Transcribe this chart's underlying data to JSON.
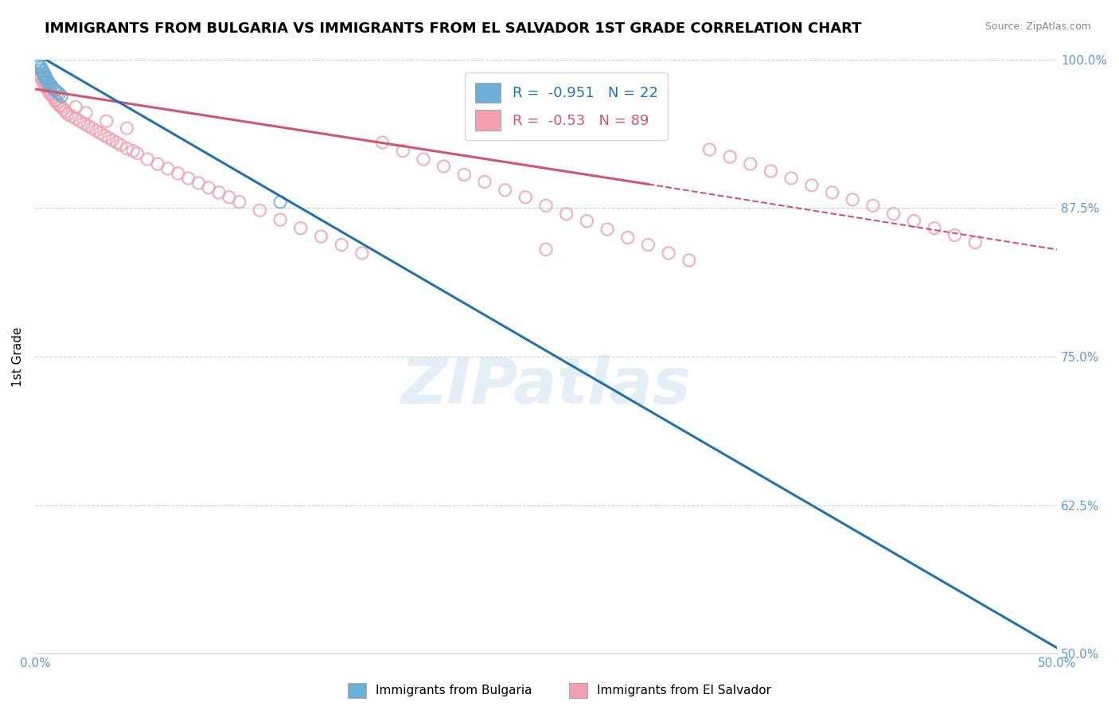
{
  "title": "IMMIGRANTS FROM BULGARIA VS IMMIGRANTS FROM EL SALVADOR 1ST GRADE CORRELATION CHART",
  "source": "Source: ZipAtlas.com",
  "ylabel": "1st Grade",
  "xlabel_legend1": "Immigrants from Bulgaria",
  "xlabel_legend2": "Immigrants from El Salvador",
  "xlim": [
    0.0,
    0.5
  ],
  "ylim": [
    0.5,
    1.0
  ],
  "xticks": [
    0.0,
    0.125,
    0.25,
    0.375,
    0.5
  ],
  "xtick_labels": [
    "0.0%",
    "",
    "",
    "",
    "50.0%"
  ],
  "yticks": [
    0.5,
    0.625,
    0.75,
    0.875,
    1.0
  ],
  "ytick_labels": [
    "50.0%",
    "62.5%",
    "75.0%",
    "87.5%",
    "100.0%"
  ],
  "r_bulgaria": -0.951,
  "n_bulgaria": 22,
  "r_salvador": -0.53,
  "n_salvador": 89,
  "color_bulgaria": "#6baed6",
  "color_salvador": "#f4a0b0",
  "line_color_bulgaria": "#2171b5",
  "line_color_salvador": "#d6536d",
  "watermark": "ZIPatlas",
  "bulg_line_x0": 0.0,
  "bulg_line_y0": 1.005,
  "bulg_line_x1": 0.5,
  "bulg_line_y1": 0.505,
  "salv_line_x0": 0.0,
  "salv_line_y0": 0.975,
  "salv_line_x1_solid": 0.3,
  "salv_line_y1_solid": 0.895,
  "salv_line_x1_dash": 0.5,
  "salv_line_y1_dash": 0.84,
  "bulgaria_x": [
    0.001,
    0.002,
    0.002,
    0.003,
    0.003,
    0.004,
    0.004,
    0.005,
    0.005,
    0.005,
    0.006,
    0.006,
    0.007,
    0.007,
    0.008,
    0.008,
    0.009,
    0.01,
    0.011,
    0.012,
    0.013,
    0.12
  ],
  "bulgaria_y": [
    0.998,
    0.996,
    0.994,
    0.993,
    0.991,
    0.99,
    0.988,
    0.987,
    0.985,
    0.984,
    0.983,
    0.981,
    0.98,
    0.979,
    0.978,
    0.977,
    0.975,
    0.974,
    0.972,
    0.971,
    0.969,
    0.88
  ],
  "salvador_x": [
    0.002,
    0.003,
    0.003,
    0.004,
    0.004,
    0.005,
    0.005,
    0.006,
    0.006,
    0.007,
    0.007,
    0.008,
    0.008,
    0.009,
    0.01,
    0.01,
    0.011,
    0.012,
    0.013,
    0.014,
    0.015,
    0.016,
    0.018,
    0.02,
    0.022,
    0.024,
    0.026,
    0.028,
    0.03,
    0.032,
    0.034,
    0.036,
    0.038,
    0.04,
    0.042,
    0.045,
    0.048,
    0.05,
    0.055,
    0.06,
    0.065,
    0.07,
    0.075,
    0.08,
    0.085,
    0.09,
    0.095,
    0.1,
    0.11,
    0.12,
    0.13,
    0.14,
    0.15,
    0.16,
    0.17,
    0.18,
    0.19,
    0.2,
    0.21,
    0.22,
    0.23,
    0.24,
    0.25,
    0.26,
    0.27,
    0.28,
    0.29,
    0.3,
    0.31,
    0.32,
    0.33,
    0.34,
    0.35,
    0.36,
    0.37,
    0.38,
    0.39,
    0.4,
    0.41,
    0.42,
    0.43,
    0.44,
    0.45,
    0.46,
    0.02,
    0.025,
    0.035,
    0.045,
    0.25
  ],
  "salvador_y": [
    0.988,
    0.986,
    0.984,
    0.983,
    0.981,
    0.98,
    0.978,
    0.977,
    0.975,
    0.974,
    0.972,
    0.971,
    0.97,
    0.968,
    0.966,
    0.965,
    0.963,
    0.961,
    0.96,
    0.958,
    0.956,
    0.954,
    0.952,
    0.95,
    0.948,
    0.946,
    0.944,
    0.942,
    0.94,
    0.938,
    0.936,
    0.934,
    0.932,
    0.93,
    0.928,
    0.925,
    0.923,
    0.921,
    0.916,
    0.912,
    0.908,
    0.904,
    0.9,
    0.896,
    0.892,
    0.888,
    0.884,
    0.88,
    0.873,
    0.865,
    0.858,
    0.851,
    0.844,
    0.837,
    0.93,
    0.923,
    0.916,
    0.91,
    0.903,
    0.897,
    0.89,
    0.884,
    0.877,
    0.87,
    0.864,
    0.857,
    0.85,
    0.844,
    0.837,
    0.831,
    0.924,
    0.918,
    0.912,
    0.906,
    0.9,
    0.894,
    0.888,
    0.882,
    0.877,
    0.87,
    0.864,
    0.858,
    0.852,
    0.846,
    0.96,
    0.955,
    0.948,
    0.942,
    0.84
  ]
}
